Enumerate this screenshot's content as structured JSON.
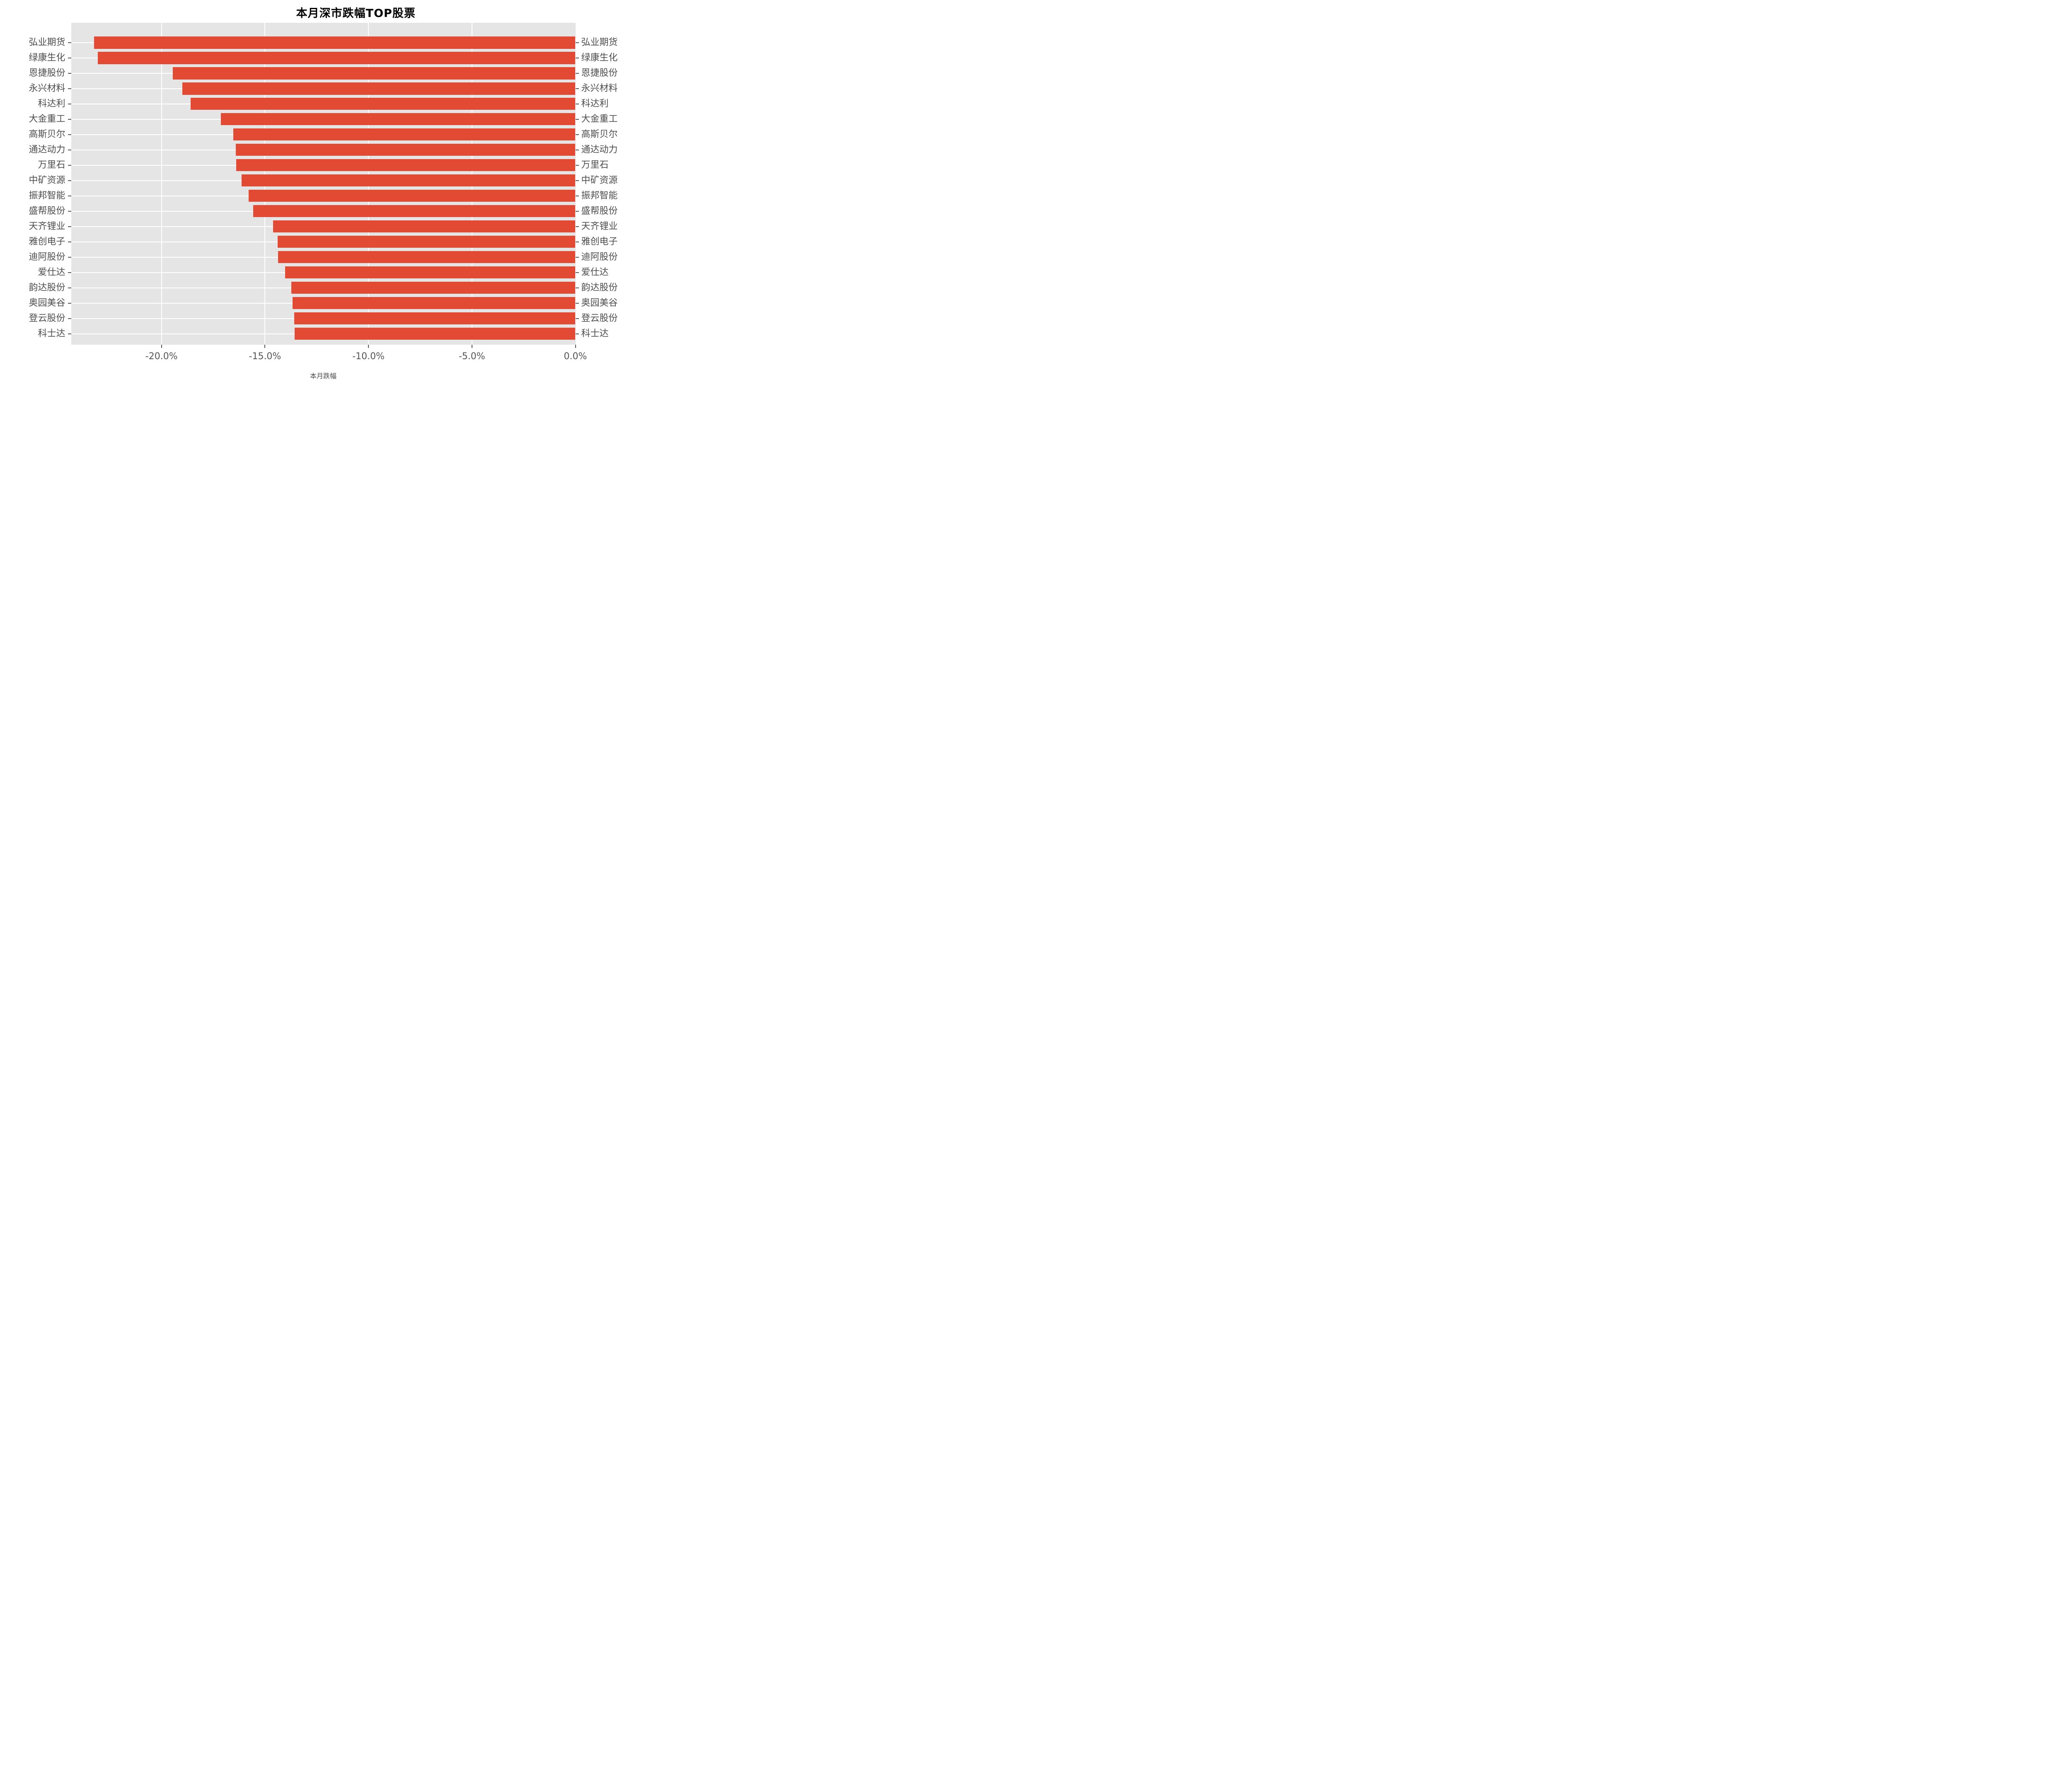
{
  "title": "本月深市跌幅TOP股票",
  "chart_data": {
    "type": "bar",
    "orientation": "horizontal",
    "title": "本月深市跌幅TOP股票",
    "xlabel": "本月跌幅",
    "ylabel": "",
    "categories": [
      "弘业期货",
      "绿康生化",
      "恩捷股份",
      "永兴材料",
      "科达利",
      "大金重工",
      "高斯贝尔",
      "通达动力",
      "万里石",
      "中矿资源",
      "振邦智能",
      "盛帮股份",
      "天齐锂业",
      "雅创电子",
      "迪阿股份",
      "爱仕达",
      "韵达股份",
      "奥园美谷",
      "登云股份",
      "科士达"
    ],
    "values": [
      -23.26,
      -23.08,
      -19.45,
      -19.0,
      -18.6,
      -17.14,
      -16.54,
      -16.41,
      -16.4,
      -16.13,
      -15.79,
      -15.57,
      -14.61,
      -14.38,
      -14.37,
      -14.02,
      -13.72,
      -13.67,
      -13.59,
      -13.57
    ],
    "unit": "%",
    "x_ticks": [
      {
        "value": -20,
        "label": "-20.0%"
      },
      {
        "value": -15,
        "label": "-15.0%"
      },
      {
        "value": -10,
        "label": "-10.0%"
      },
      {
        "value": -5,
        "label": "-5.0%"
      },
      {
        "value": 0,
        "label": "0.0%"
      }
    ],
    "xlim": [
      -24.37,
      0
    ],
    "grid": true,
    "legend": false,
    "y_labels_both_sides": true,
    "colors": {
      "bar": "#E24A33",
      "panel_bg": "#E5E5E5",
      "grid": "#FFFFFF",
      "tick_mark": "#555555",
      "tick_text": "#555555",
      "label_text": "#4D4D4D",
      "title_text": "#000000",
      "figure_bg": "#FFFFFF"
    }
  }
}
